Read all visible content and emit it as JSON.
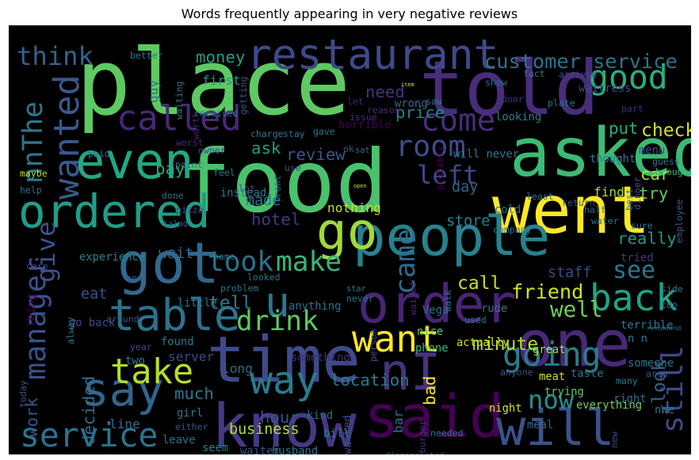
{
  "chart_data": {
    "type": "wordcloud",
    "title": "Words frequently appearing in very negative reviews",
    "background": "#000000",
    "colormap": "viridis",
    "words": [
      {
        "text": "place",
        "weight": 100,
        "color": "#5ec962"
      },
      {
        "text": "food",
        "weight": 95,
        "color": "#4ac16d"
      },
      {
        "text": "told",
        "weight": 82,
        "color": "#472d7b"
      },
      {
        "text": "asked",
        "weight": 74,
        "color": "#3bbb75"
      },
      {
        "text": "went",
        "weight": 72,
        "color": "#fde725"
      },
      {
        "text": "time",
        "weight": 70,
        "color": "#3e4a89"
      },
      {
        "text": "one",
        "weight": 70,
        "color": "#482878"
      },
      {
        "text": "know",
        "weight": 66,
        "color": "#443983"
      },
      {
        "text": "said",
        "weight": 64,
        "color": "#440154"
      },
      {
        "text": "got",
        "weight": 62,
        "color": "#31688e"
      },
      {
        "text": "people",
        "weight": 60,
        "color": "#26828e"
      },
      {
        "text": "order",
        "weight": 58,
        "color": "#482475"
      },
      {
        "text": "go",
        "weight": 56,
        "color": "#a0da39"
      },
      {
        "text": "nI",
        "weight": 56,
        "color": "#46337e"
      },
      {
        "text": "will",
        "weight": 54,
        "color": "#3b528b"
      },
      {
        "text": "even",
        "weight": 54,
        "color": "#22a884"
      },
      {
        "text": "ordered",
        "weight": 50,
        "color": "#1f9e89"
      },
      {
        "text": "say",
        "weight": 50,
        "color": "#33638d"
      },
      {
        "text": "table",
        "weight": 48,
        "color": "#2c728e"
      },
      {
        "text": "restaurant",
        "weight": 46,
        "color": "#3e4989"
      },
      {
        "text": "u",
        "weight": 46,
        "color": "#2a788e"
      },
      {
        "text": "way",
        "weight": 42,
        "color": "#287d8e"
      },
      {
        "text": "back",
        "weight": 40,
        "color": "#20a386"
      },
      {
        "text": "want",
        "weight": 40,
        "color": "#fde725"
      },
      {
        "text": "take",
        "weight": 38,
        "color": "#b5de2b"
      },
      {
        "text": "called",
        "weight": 38,
        "color": "#482878"
      },
      {
        "text": "wanted",
        "weight": 38,
        "color": "#38598c"
      },
      {
        "text": "service",
        "weight": 36,
        "color": "#2c728e"
      },
      {
        "text": "going",
        "weight": 36,
        "color": "#277f8e"
      },
      {
        "text": "good",
        "weight": 36,
        "color": "#29af7f"
      },
      {
        "text": "come",
        "weight": 34,
        "color": "#472d7b"
      },
      {
        "text": "room",
        "weight": 32,
        "color": "#3d4d8a"
      },
      {
        "text": "manager",
        "weight": 32,
        "color": "#3b528b"
      },
      {
        "text": "still",
        "weight": 32,
        "color": "#3e4a89"
      },
      {
        "text": "drink",
        "weight": 30,
        "color": "#5ec962"
      },
      {
        "text": "make",
        "weight": 30,
        "color": "#35b779"
      },
      {
        "text": "took",
        "weight": 30,
        "color": "#2c728e"
      },
      {
        "text": "came",
        "weight": 30,
        "color": "#2f6b8e"
      },
      {
        "text": "nnThe",
        "weight": 30,
        "color": "#2a788e"
      },
      {
        "text": "think",
        "weight": 28,
        "color": "#33638d"
      },
      {
        "text": "give",
        "weight": 28,
        "color": "#3b528b"
      },
      {
        "text": "left",
        "weight": 28,
        "color": "#3e4a89"
      },
      {
        "text": "now",
        "weight": 28,
        "color": "#21918c"
      },
      {
        "text": "see",
        "weight": 26,
        "color": "#2a788e"
      },
      {
        "text": "well",
        "weight": 24,
        "color": "#6ece58"
      },
      {
        "text": "customer service",
        "weight": 22,
        "color": "#2c728e"
      },
      {
        "text": "friend",
        "weight": 22,
        "color": "#d2e21b"
      },
      {
        "text": "check",
        "weight": 20,
        "color": "#d2e21b"
      },
      {
        "text": "minute",
        "weight": 20,
        "color": "#b5de2b"
      },
      {
        "text": "call",
        "weight": 20,
        "color": "#c8e020"
      },
      {
        "text": "tell",
        "weight": 20,
        "color": "#2a788e"
      },
      {
        "text": "look",
        "weight": 20,
        "color": "#33638d"
      },
      {
        "text": "money",
        "weight": 18,
        "color": "#1f9e89"
      },
      {
        "text": "need",
        "weight": 18,
        "color": "#46327e"
      },
      {
        "text": "price",
        "weight": 18,
        "color": "#26828e"
      },
      {
        "text": "put",
        "weight": 18,
        "color": "#25ac82"
      },
      {
        "text": "review",
        "weight": 18,
        "color": "#39568c"
      },
      {
        "text": "ask",
        "weight": 18,
        "color": "#1fa088"
      },
      {
        "text": "pay",
        "weight": 18,
        "color": "#22a884"
      },
      {
        "text": "car",
        "weight": 18,
        "color": "#b5de2b"
      },
      {
        "text": "try",
        "weight": 18,
        "color": "#5ec962"
      },
      {
        "text": "hotel",
        "weight": 18,
        "color": "#453781"
      },
      {
        "text": "really",
        "weight": 18,
        "color": "#1f968b"
      },
      {
        "text": "hour",
        "weight": 18,
        "color": "#3b528b"
      },
      {
        "text": "work",
        "weight": 18,
        "color": "#39568c"
      },
      {
        "text": "decided",
        "weight": 18,
        "color": "#2d708e"
      },
      {
        "text": "bad",
        "weight": 18,
        "color": "#fde725"
      },
      {
        "text": "location",
        "weight": 18,
        "color": "#287d8e"
      },
      {
        "text": "much",
        "weight": 18,
        "color": "#2a788e"
      },
      {
        "text": "business",
        "weight": 16,
        "color": "#b5de2b"
      },
      {
        "text": "staff",
        "weight": 16,
        "color": "#3e4a89"
      },
      {
        "text": "eat",
        "weight": 16,
        "color": "#3b528b"
      },
      {
        "text": "wait",
        "weight": 16,
        "color": "#31688e"
      },
      {
        "text": "made",
        "weight": 16,
        "color": "#2a788e"
      },
      {
        "text": "store",
        "weight": 16,
        "color": "#25838e"
      },
      {
        "text": "day",
        "weight": 16,
        "color": "#31688e"
      },
      {
        "text": "find",
        "weight": 14,
        "color": "#a0da39"
      },
      {
        "text": "nothing",
        "weight": 14,
        "color": "#c8e020"
      },
      {
        "text": "server",
        "weight": 14,
        "color": "#3e4a89"
      },
      {
        "text": "guy",
        "weight": 14,
        "color": "#2a788e"
      },
      {
        "text": "first",
        "weight": 14,
        "color": "#1f968b"
      },
      {
        "text": "bar",
        "weight": 14,
        "color": "#2c728e"
      },
      {
        "text": "line",
        "weight": 14,
        "color": "#2f6b8e"
      },
      {
        "text": "thing",
        "weight": 12,
        "color": "#440154"
      },
      {
        "text": "tried",
        "weight": 12,
        "color": "#453781"
      },
      {
        "text": "nice",
        "weight": 12,
        "color": "#5ec962"
      },
      {
        "text": "phone",
        "weight": 12,
        "color": "#35b779"
      },
      {
        "text": "waiter",
        "weight": 12,
        "color": "#3b528b"
      },
      {
        "text": "seem",
        "weight": 12,
        "color": "#26828e"
      },
      {
        "text": "everything",
        "weight": 12,
        "color": "#75d054"
      },
      {
        "text": "meal",
        "weight": 12,
        "color": "#2f6b8e"
      },
      {
        "text": "night",
        "weight": 12,
        "color": "#d8e219"
      },
      {
        "text": "trying",
        "weight": 12,
        "color": "#5ec962"
      },
      {
        "text": "walked",
        "weight": 12,
        "color": "#3e4a89"
      },
      {
        "text": "bill",
        "weight": 12,
        "color": "#2a788e"
      },
      {
        "text": "kind",
        "weight": 12,
        "color": "#2f6b8e"
      },
      {
        "text": "something",
        "weight": 12,
        "color": "#472d7b"
      },
      {
        "text": "great",
        "weight": 12,
        "color": "#b5de2b"
      },
      {
        "text": "actually",
        "weight": 12,
        "color": "#d2e21b"
      },
      {
        "text": "experience",
        "weight": 12,
        "color": "#26828e"
      },
      {
        "text": "cold",
        "weight": 12,
        "color": "#2f6b8e"
      },
      {
        "text": "company",
        "weight": 10,
        "color": "#2a788e"
      },
      {
        "text": "dinner",
        "weight": 10,
        "color": "#3b528b"
      },
      {
        "text": "sure",
        "weight": 10,
        "color": "#2a788e"
      },
      {
        "text": "water",
        "weight": 10,
        "color": "#2c728e"
      },
      {
        "text": "employee",
        "weight": 10,
        "color": "#38598c"
      },
      {
        "text": "best",
        "weight": 10,
        "color": "#2c728e"
      },
      {
        "text": "half",
        "weight": 10,
        "color": "#31688e"
      },
      {
        "text": "return",
        "weight": 10,
        "color": "#3b528b"
      },
      {
        "text": "least",
        "weight": 10,
        "color": "#2c728e"
      },
      {
        "text": "guess",
        "weight": 10,
        "color": "#2a788e"
      },
      {
        "text": "brought",
        "weight": 10,
        "color": "#35b779"
      },
      {
        "text": "menu",
        "weight": 12,
        "color": "#3b528b"
      },
      {
        "text": "thought",
        "weight": 12,
        "color": "#2a788e"
      },
      {
        "text": "door",
        "weight": 10,
        "color": "#46327e"
      },
      {
        "text": "plate",
        "weight": 10,
        "color": "#2c728e"
      },
      {
        "text": "part",
        "weight": 10,
        "color": "#482878"
      },
      {
        "text": "waitress",
        "weight": 12,
        "color": "#3e4a89"
      },
      {
        "text": "arrived",
        "weight": 10,
        "color": "#3e4a89"
      },
      {
        "text": "fact",
        "weight": 10,
        "color": "#2a788e"
      },
      {
        "text": "show",
        "weight": 10,
        "color": "#2c728e"
      },
      {
        "text": "looking",
        "weight": 12,
        "color": "#287d8e"
      },
      {
        "text": "wrong",
        "weight": 12,
        "color": "#31688e"
      },
      {
        "text": "saw",
        "weight": 10,
        "color": "#2a788e"
      },
      {
        "text": "reason",
        "weight": 10,
        "color": "#482878"
      },
      {
        "text": "issue",
        "weight": 10,
        "color": "#46327e"
      },
      {
        "text": "let",
        "weight": 10,
        "color": "#482878"
      },
      {
        "text": "horrible",
        "weight": 12,
        "color": "#440154"
      },
      {
        "text": "getting",
        "weight": 10,
        "color": "#3b528b"
      },
      {
        "text": "received",
        "weight": 10,
        "color": "#2a788e"
      },
      {
        "text": "better",
        "weight": 10,
        "color": "#2a788e"
      },
      {
        "text": "worth",
        "weight": 10,
        "color": "#482878"
      },
      {
        "text": "waiting",
        "weight": 10,
        "color": "#2c728e"
      },
      {
        "text": "worst",
        "weight": 10,
        "color": "#482878"
      },
      {
        "text": "owner",
        "weight": 10,
        "color": "#3e4a89"
      },
      {
        "text": "charge",
        "weight": 10,
        "color": "#2a788e"
      },
      {
        "text": "stay",
        "weight": 10,
        "color": "#2c728e"
      },
      {
        "text": "gave",
        "weight": 10,
        "color": "#2a788e"
      },
      {
        "text": "ok",
        "weight": 10,
        "color": "#3b528b"
      },
      {
        "text": "sat",
        "weight": 9,
        "color": "#2c728e"
      },
      {
        "text": "will never",
        "weight": 12,
        "color": "#2a788e"
      },
      {
        "text": "probably",
        "weight": 10,
        "color": "#440154"
      },
      {
        "text": "use",
        "weight": 10,
        "color": "#3b528b"
      },
      {
        "text": "paid",
        "weight": 10,
        "color": "#2a788e"
      },
      {
        "text": "maybe",
        "weight": 10,
        "color": "#b5de2b"
      },
      {
        "text": "point",
        "weight": 10,
        "color": "#2c728e"
      },
      {
        "text": "feel",
        "weight": 10,
        "color": "#2a788e"
      },
      {
        "text": "lot",
        "weight": 10,
        "color": "#3e4a89"
      },
      {
        "text": "help",
        "weight": 10,
        "color": "#2c728e"
      },
      {
        "text": "instead",
        "weight": 12,
        "color": "#2a788e"
      },
      {
        "text": "front",
        "weight": 10,
        "color": "#31688e"
      },
      {
        "text": "done",
        "weight": 10,
        "color": "#2c728e"
      },
      {
        "text": "pizza",
        "weight": 10,
        "color": "#3e4a89"
      },
      {
        "text": "salad",
        "weight": 9,
        "color": "#3b528b"
      },
      {
        "text": "care",
        "weight": 10,
        "color": "#3e4a89"
      },
      {
        "text": "name",
        "weight": 10,
        "color": "#2a788e"
      },
      {
        "text": "looked",
        "weight": 10,
        "color": "#2c728e"
      },
      {
        "text": "star",
        "weight": 9,
        "color": "#2a788e"
      },
      {
        "text": "never",
        "weight": 10,
        "color": "#2a788e"
      },
      {
        "text": "waited",
        "weight": 10,
        "color": "#482878"
      },
      {
        "text": "problem",
        "weight": 10,
        "color": "#2c728e"
      },
      {
        "text": "go back",
        "weight": 12,
        "color": "#3e4a89"
      },
      {
        "text": "little",
        "weight": 12,
        "color": "#2a788e"
      },
      {
        "text": "end",
        "weight": 9,
        "color": "#3b528b"
      },
      {
        "text": "around",
        "weight": 10,
        "color": "#3b528b"
      },
      {
        "text": "anything",
        "weight": 12,
        "color": "#2c728e"
      },
      {
        "text": "alway",
        "weight": 10,
        "color": "#2a788e"
      },
      {
        "text": "person",
        "weight": 10,
        "color": "#3e4a89"
      },
      {
        "text": "used",
        "weight": 10,
        "color": "#2c728e"
      },
      {
        "text": "rude",
        "weight": 12,
        "color": "#2a788e"
      },
      {
        "text": "Vega",
        "weight": 12,
        "color": "#2c728e"
      },
      {
        "text": "found",
        "weight": 12,
        "color": "#2a788e"
      },
      {
        "text": "year",
        "weight": 10,
        "color": "#3e4a89"
      },
      {
        "text": "two",
        "weight": 12,
        "color": "#2a788e"
      },
      {
        "text": "long",
        "weight": 14,
        "color": "#2f6b8e"
      },
      {
        "text": "today",
        "weight": 10,
        "color": "#3b528b"
      },
      {
        "text": "girl",
        "weight": 12,
        "color": "#2a788e"
      },
      {
        "text": "either",
        "weight": 10,
        "color": "#3b528b"
      },
      {
        "text": "leave",
        "weight": 12,
        "color": "#2c728e"
      },
      {
        "text": "husband",
        "weight": 12,
        "color": "#2a788e"
      },
      {
        "text": "needed",
        "weight": 10,
        "color": "#2c728e"
      },
      {
        "text": "burger",
        "weight": 10,
        "color": "#472d7b"
      },
      {
        "text": "disappointed",
        "weight": 9,
        "color": "#2a788e"
      },
      {
        "text": "walk",
        "weight": 10,
        "color": "#2c728e"
      },
      {
        "text": "anyone",
        "weight": 10,
        "color": "#3b528b"
      },
      {
        "text": "meat",
        "weight": 12,
        "color": "#c8e020"
      },
      {
        "text": "taste",
        "weight": 12,
        "color": "#2c728e"
      },
      {
        "text": "many",
        "weight": 10,
        "color": "#2a788e"
      },
      {
        "text": "area",
        "weight": 10,
        "color": "#3b528b"
      },
      {
        "text": "recommend",
        "weight": 7,
        "color": "#2c728e"
      },
      {
        "text": "someone",
        "weight": 12,
        "color": "#2a788e"
      },
      {
        "text": "right",
        "weight": 12,
        "color": "#2f6b8e"
      },
      {
        "text": "nWe",
        "weight": 12,
        "color": "#2c728e"
      },
      {
        "text": "new",
        "weight": 10,
        "color": "#3e4a89"
      },
      {
        "text": "side",
        "weight": 10,
        "color": "#2a788e"
      },
      {
        "text": "top",
        "weight": 10,
        "color": "#2c728e"
      },
      {
        "text": "terrible",
        "weight": 12,
        "color": "#2a788e"
      },
      {
        "text": "n n",
        "weight": 12,
        "color": "#2a788e"
      },
      {
        "text": "item",
        "weight": 6,
        "color": "#d2e21b"
      },
      {
        "text": "open",
        "weight": 6,
        "color": "#d2e21b"
      }
    ]
  }
}
